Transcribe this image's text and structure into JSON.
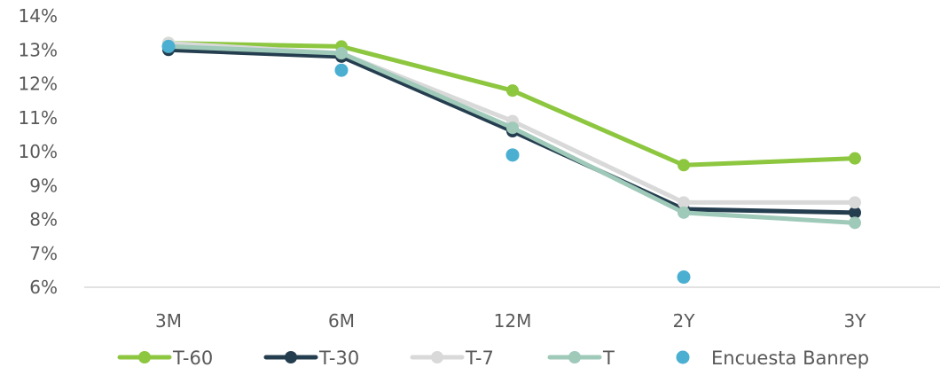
{
  "chart_data": {
    "type": "line",
    "title": "",
    "xlabel": "",
    "ylabel": "",
    "categories": [
      "3M",
      "6M",
      "12M",
      "2Y",
      "3Y"
    ],
    "ylim": [
      6,
      14
    ],
    "yticks": [
      6,
      7,
      8,
      9,
      10,
      11,
      12,
      13,
      14
    ],
    "y_unit": "%",
    "grid": false,
    "legend_position": "bottom",
    "series": [
      {
        "name": "T-60",
        "type": "line",
        "color": "#8dc63f",
        "values": [
          13.2,
          13.1,
          11.8,
          9.6,
          9.8
        ]
      },
      {
        "name": "T-30",
        "type": "line",
        "color": "#253e4f",
        "values": [
          13.0,
          12.8,
          10.6,
          8.3,
          8.2
        ]
      },
      {
        "name": "T-7",
        "type": "line",
        "color": "#d9d9d9",
        "values": [
          13.2,
          12.9,
          10.9,
          8.5,
          8.5
        ]
      },
      {
        "name": "T",
        "type": "line",
        "color": "#9fc9b9",
        "values": [
          13.1,
          12.9,
          10.7,
          8.2,
          7.9
        ]
      },
      {
        "name": "Encuesta Banrep",
        "type": "scatter",
        "color": "#4bafd1",
        "values": [
          13.1,
          12.4,
          9.9,
          6.3,
          null
        ]
      }
    ]
  }
}
